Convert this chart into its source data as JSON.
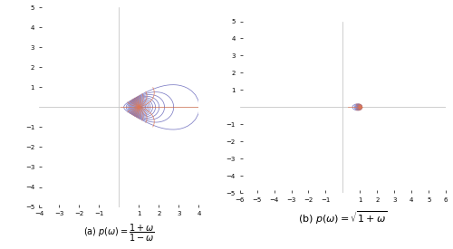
{
  "title_a": "(a) $p(\\omega) = \\frac{1+\\omega}{1-\\omega}$",
  "title_b": "(b) $p(\\omega) = \\sqrt{1+\\omega}$",
  "blue_color": "#6666bb",
  "red_color": "#dd7755",
  "axis_color": "#bbbbbb",
  "bg_color": "#ffffff",
  "xlim_a": [
    -4,
    4
  ],
  "ylim_a": [
    -5,
    5
  ],
  "xlim_b": [
    -6,
    6
  ],
  "ylim_b": [
    -5,
    5
  ],
  "n_radii": 24,
  "n_circles": 16,
  "lw": 0.55,
  "alpha_lines": 0.85
}
